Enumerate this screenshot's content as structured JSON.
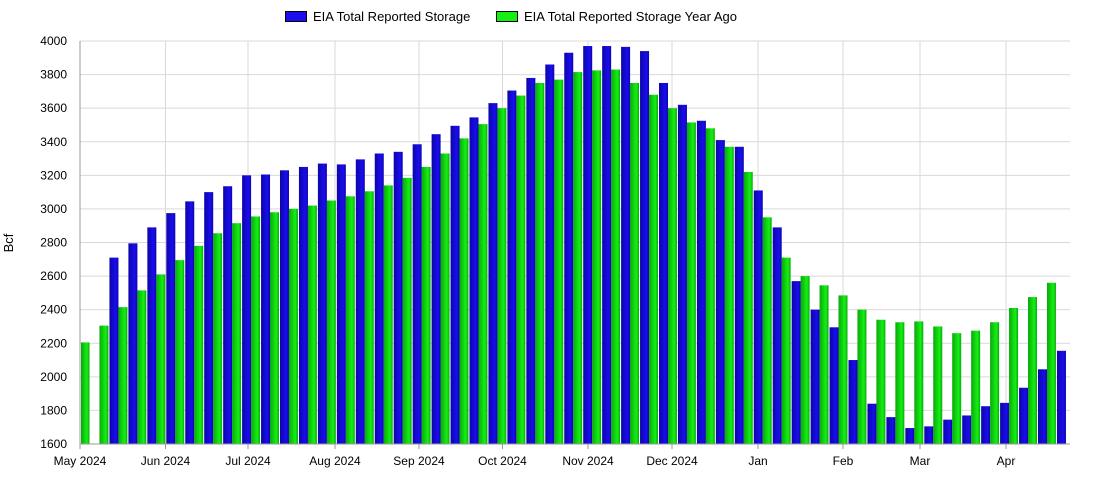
{
  "chart_data": {
    "type": "bar",
    "title": "",
    "xlabel": "",
    "ylabel": "Bcf",
    "ylim": [
      1600,
      4000
    ],
    "y_ticks": [
      1600,
      1800,
      2000,
      2200,
      2400,
      2600,
      2800,
      3000,
      3200,
      3400,
      3600,
      3800,
      4000
    ],
    "x_tick_labels": [
      "May 2024",
      "Jun 2024",
      "Jul 2024",
      "Aug 2024",
      "Sep 2024",
      "Oct 2024",
      "Nov 2024",
      "Dec 2024",
      "Jan",
      "Feb",
      "Mar",
      "Apr"
    ],
    "grid": true,
    "legend_position": "top-center",
    "colors": {
      "current": "#1a0dee",
      "year_ago": "#14f014"
    },
    "series": [
      {
        "name": "EIA Total Reported Storage",
        "values": [
          null,
          2710,
          2795,
          2890,
          2975,
          3045,
          3100,
          3135,
          3200,
          3205,
          3230,
          3250,
          3270,
          3265,
          3295,
          3330,
          3340,
          3385,
          3445,
          3495,
          3545,
          3630,
          3705,
          3780,
          3860,
          3930,
          3970,
          3970,
          3965,
          3940,
          3750,
          3620,
          3525,
          3410,
          3370,
          3110,
          2890,
          2570,
          2400,
          2295,
          2100,
          1840,
          1760,
          1695,
          1705,
          1745,
          1770,
          1825,
          1845,
          1935,
          2045,
          2155
        ]
      },
      {
        "name": "EIA Total Reported Storage Year Ago",
        "values": [
          2205,
          2305,
          2415,
          2515,
          2610,
          2695,
          2780,
          2855,
          2915,
          2955,
          2980,
          3000,
          3020,
          3050,
          3075,
          3105,
          3140,
          3185,
          3250,
          3330,
          3420,
          3505,
          3600,
          3675,
          3750,
          3770,
          3815,
          3825,
          3830,
          3750,
          3680,
          3600,
          3515,
          3480,
          3370,
          3220,
          2950,
          2710,
          2600,
          2545,
          2485,
          2400,
          2340,
          2325,
          2330,
          2300,
          2260,
          2275,
          2325,
          2410,
          2475,
          2560
        ]
      }
    ]
  }
}
